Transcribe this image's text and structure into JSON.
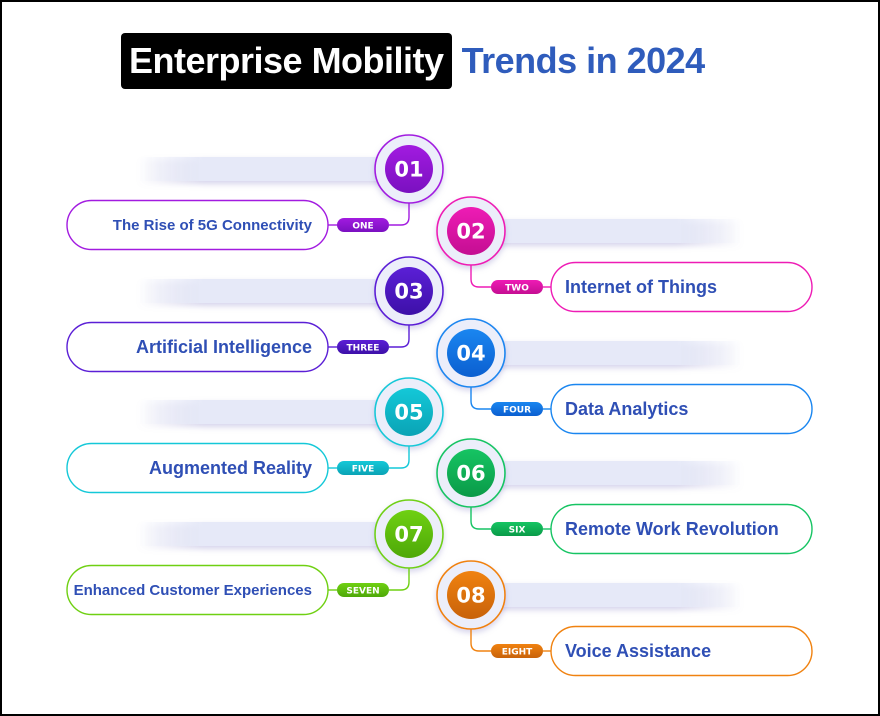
{
  "title": {
    "highlight": "Enterprise Mobility",
    "rest": "Trends in 2024"
  },
  "colors": {
    "title_blue": "#2f5cbc",
    "label_text": "#2f4fb5",
    "bar_fill": "#e6e9f8"
  },
  "trends": [
    {
      "number": "01",
      "tag": "ONE",
      "label": "The Rise of 5G Connectivity",
      "side": "left",
      "color": "#a21be0",
      "color_dark": "#7a10c0"
    },
    {
      "number": "02",
      "tag": "TWO",
      "label": "Internet of Things",
      "side": "right",
      "color": "#ee1cb5",
      "color_dark": "#c40e92"
    },
    {
      "number": "03",
      "tag": "THREE",
      "label": "Artificial Intelligence",
      "side": "left",
      "color": "#5b1fd6",
      "color_dark": "#3d10a8"
    },
    {
      "number": "04",
      "tag": "FOUR",
      "label": "Data Analytics",
      "side": "right",
      "color": "#1a86f0",
      "color_dark": "#0b5fd0"
    },
    {
      "number": "05",
      "tag": "FIVE",
      "label": "Augmented Reality",
      "side": "left",
      "color": "#14c8d8",
      "color_dark": "#0aa3b5"
    },
    {
      "number": "06",
      "tag": "SIX",
      "label": "Remote Work Revolution",
      "side": "right",
      "color": "#16c463",
      "color_dark": "#0a9a48"
    },
    {
      "number": "07",
      "tag": "SEVEN",
      "label": "Enhanced Customer Experiences",
      "side": "left",
      "color": "#6fd012",
      "color_dark": "#4ea808"
    },
    {
      "number": "08",
      "tag": "EIGHT",
      "label": "Voice Assistance",
      "side": "right",
      "color": "#f08210",
      "color_dark": "#c8620a"
    }
  ]
}
